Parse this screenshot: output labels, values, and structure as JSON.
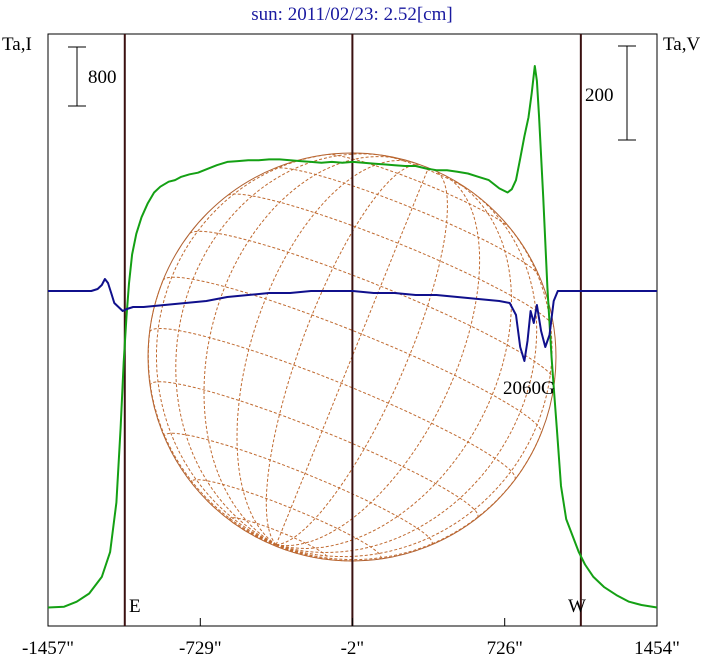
{
  "chart_data": {
    "type": "line",
    "title": "sun: 2011/02/23: 2.52[cm]",
    "left_axis_label": "Ta,I",
    "right_axis_label": "Ta,V",
    "left_scale_bar": "800",
    "right_scale_bar": "200",
    "xticks": [
      "-1457\"",
      "-729\"",
      "-2\"",
      "726\"",
      "1454\""
    ],
    "x_tick_values": [
      -1457,
      -729,
      -2,
      726,
      1454
    ],
    "xlim": [
      -1457,
      1454
    ],
    "vertical_lines": [
      -1090,
      -2,
      1090
    ],
    "limb_labels": {
      "east": "E",
      "west": "W"
    },
    "annotation": "2060G",
    "annotation_x": 880,
    "solar_radius_arcsec": 975,
    "series": [
      {
        "color": "#14a014",
        "points": [
          [
            -1457,
            3
          ],
          [
            -1380,
            4
          ],
          [
            -1320,
            10
          ],
          [
            -1260,
            20
          ],
          [
            -1200,
            40
          ],
          [
            -1160,
            70
          ],
          [
            -1130,
            130
          ],
          [
            -1110,
            220
          ],
          [
            -1095,
            300
          ],
          [
            -1082,
            355
          ],
          [
            -1070,
            395
          ],
          [
            -1055,
            430
          ],
          [
            -1035,
            455
          ],
          [
            -1010,
            475
          ],
          [
            -980,
            492
          ],
          [
            -950,
            505
          ],
          [
            -920,
            512
          ],
          [
            -880,
            518
          ],
          [
            -850,
            520
          ],
          [
            -820,
            524
          ],
          [
            -780,
            527
          ],
          [
            -740,
            529
          ],
          [
            -700,
            533
          ],
          [
            -650,
            538
          ],
          [
            -600,
            542
          ],
          [
            -550,
            543
          ],
          [
            -500,
            544
          ],
          [
            -450,
            544
          ],
          [
            -400,
            545
          ],
          [
            -350,
            545
          ],
          [
            -300,
            544
          ],
          [
            -250,
            543
          ],
          [
            -200,
            542
          ],
          [
            -150,
            541
          ],
          [
            -100,
            542
          ],
          [
            -50,
            541
          ],
          [
            0,
            542
          ],
          [
            50,
            541
          ],
          [
            100,
            540
          ],
          [
            150,
            539
          ],
          [
            200,
            538
          ],
          [
            250,
            537
          ],
          [
            300,
            537
          ],
          [
            350,
            534
          ],
          [
            400,
            532
          ],
          [
            450,
            532
          ],
          [
            500,
            530
          ],
          [
            550,
            528
          ],
          [
            600,
            524
          ],
          [
            650,
            520
          ],
          [
            700,
            510
          ],
          [
            740,
            505
          ],
          [
            760,
            509
          ],
          [
            780,
            520
          ],
          [
            800,
            546
          ],
          [
            820,
            573
          ],
          [
            840,
            596
          ],
          [
            855,
            625
          ],
          [
            870,
            658
          ],
          [
            880,
            640
          ],
          [
            890,
            598
          ],
          [
            910,
            500
          ],
          [
            930,
            390
          ],
          [
            950,
            305
          ],
          [
            960,
            270
          ],
          [
            975,
            220
          ],
          [
            995,
            150
          ],
          [
            1020,
            110
          ],
          [
            1050,
            90
          ],
          [
            1080,
            70
          ],
          [
            1110,
            55
          ],
          [
            1150,
            40
          ],
          [
            1200,
            28
          ],
          [
            1260,
            18
          ],
          [
            1320,
            10
          ],
          [
            1380,
            6
          ],
          [
            1454,
            3
          ]
        ]
      },
      {
        "color": "#10108c",
        "points": [
          [
            -1457,
            0
          ],
          [
            -1300,
            0
          ],
          [
            -1250,
            0
          ],
          [
            -1220,
            1
          ],
          [
            -1200,
            3
          ],
          [
            -1185,
            6
          ],
          [
            -1170,
            4
          ],
          [
            -1155,
            -1
          ],
          [
            -1140,
            -6
          ],
          [
            -1120,
            -8
          ],
          [
            -1100,
            -10
          ],
          [
            -1080,
            -9
          ],
          [
            -1050,
            -8
          ],
          [
            -1000,
            -8
          ],
          [
            -900,
            -7
          ],
          [
            -800,
            -6
          ],
          [
            -700,
            -5
          ],
          [
            -600,
            -3
          ],
          [
            -500,
            -2
          ],
          [
            -400,
            -1
          ],
          [
            -300,
            -1
          ],
          [
            -200,
            0
          ],
          [
            -100,
            0
          ],
          [
            0,
            0
          ],
          [
            100,
            -1
          ],
          [
            200,
            -1
          ],
          [
            300,
            -2
          ],
          [
            400,
            -2
          ],
          [
            500,
            -3
          ],
          [
            600,
            -4
          ],
          [
            700,
            -5
          ],
          [
            750,
            -6
          ],
          [
            780,
            -12
          ],
          [
            800,
            -28
          ],
          [
            820,
            -35
          ],
          [
            835,
            -25
          ],
          [
            850,
            -10
          ],
          [
            865,
            -16
          ],
          [
            880,
            -7
          ],
          [
            900,
            -20
          ],
          [
            920,
            -28
          ],
          [
            940,
            -22
          ],
          [
            960,
            -5
          ],
          [
            980,
            0
          ],
          [
            1000,
            0
          ],
          [
            1100,
            0
          ],
          [
            1200,
            0
          ],
          [
            1300,
            0
          ],
          [
            1454,
            0
          ]
        ]
      }
    ]
  }
}
